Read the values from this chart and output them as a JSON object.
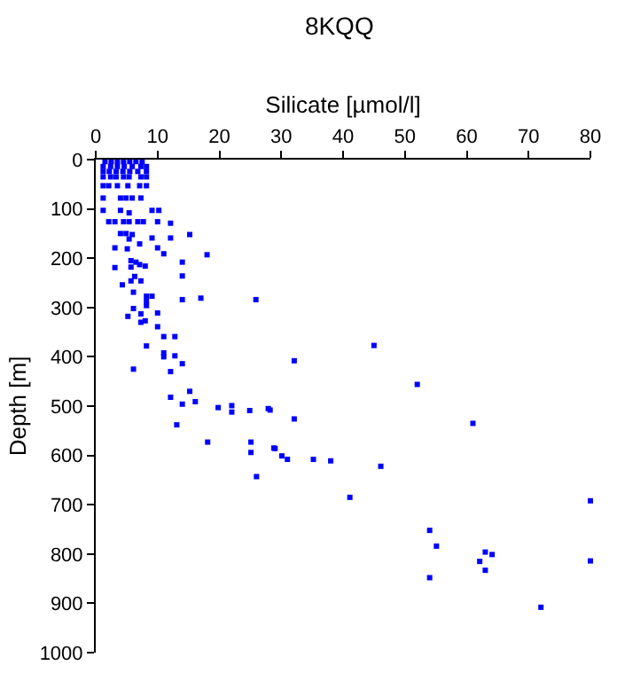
{
  "chart_data": {
    "type": "scatter",
    "title": "8KQQ",
    "xlabel": "Silicate [µmol/l]",
    "ylabel": "Depth [m]",
    "xlim": [
      0,
      80
    ],
    "xticks": [
      0,
      10,
      20,
      30,
      40,
      50,
      60,
      70,
      80
    ],
    "ylim": [
      1000,
      0
    ],
    "yticks": [
      0,
      100,
      200,
      300,
      400,
      500,
      600,
      700,
      800,
      900,
      1000
    ],
    "marker": "square",
    "series": [
      {
        "color": "#0000ff",
        "x": [
          1.5,
          2.5,
          3.5,
          4.5,
          5.5,
          6.5,
          7.5,
          1.2,
          2.4,
          3.5,
          4.6,
          5.9,
          7.3,
          8.2,
          1.2,
          2.2,
          3.3,
          4.4,
          5.5,
          6.8,
          8.2,
          1.2,
          2.4,
          3.3,
          4.5,
          5.4,
          7.3,
          8.2,
          1.2,
          2.1,
          3.5,
          5.2,
          7.1,
          8.2,
          1.2,
          4.0,
          4.9,
          5.9,
          7.3,
          1.2,
          4.0,
          5.4,
          9.1,
          10.2,
          2.1,
          3.1,
          4.5,
          5.4,
          6.8,
          7.7,
          10.0,
          12.1,
          4.0,
          4.9,
          5.9,
          15.2,
          5.4,
          9.1,
          12.1,
          3.1,
          5.1,
          7.1,
          10.0,
          11.0,
          18.0,
          5.7,
          6.5,
          7.1,
          14.0,
          3.1,
          5.7,
          8.0,
          6.3,
          14.0,
          4.3,
          5.7,
          7.3,
          6.1,
          8.2,
          9.1,
          14.0,
          17.0,
          25.9,
          8.2,
          8.2,
          6.1,
          7.3,
          10.0,
          5.2,
          7.3,
          8.0,
          10.0,
          11.0,
          12.8,
          8.2,
          11.0,
          11.0,
          12.8,
          14.0,
          6.1,
          12.1,
          15.2,
          12.1,
          14.0,
          16.1,
          19.8,
          22.0,
          22.0,
          24.9,
          27.9,
          13.1,
          18.1,
          25.1,
          25.1,
          28.8,
          26.0,
          45.0,
          32.1,
          52.0,
          28.2,
          32.1,
          61.0,
          29.0,
          30.1,
          31.0,
          35.2,
          38.0,
          46.1,
          41.1,
          54.0,
          55.1,
          63.0,
          64.1,
          62.1,
          63.0,
          54.0,
          72.0,
          80,
          80
        ],
        "values": [
          4,
          4,
          4,
          4,
          4,
          4,
          4,
          14,
          14,
          14,
          14,
          14,
          14,
          14,
          24,
          24,
          24,
          24,
          24,
          24,
          24,
          35,
          35,
          35,
          35,
          35,
          35,
          35,
          53,
          53,
          53,
          53,
          53,
          53,
          78,
          78,
          78,
          78,
          78,
          103,
          103,
          108,
          103,
          103,
          126,
          126,
          126,
          126,
          126,
          126,
          126,
          129,
          150,
          150,
          152,
          152,
          161,
          159,
          159,
          179,
          181,
          171,
          179,
          191,
          193,
          205,
          208,
          213,
          208,
          219,
          218,
          216,
          237,
          236,
          254,
          246,
          246,
          269,
          277,
          277,
          284,
          281,
          284,
          287,
          296,
          302,
          313,
          311,
          318,
          330,
          327,
          339,
          359,
          359,
          378,
          392,
          400,
          398,
          414,
          425,
          430,
          470,
          482,
          496,
          491,
          503,
          499,
          512,
          509,
          505,
          538,
          573,
          573,
          594,
          585,
          643,
          377,
          408,
          456,
          508,
          526,
          535,
          586,
          601,
          608,
          608,
          611,
          622,
          685,
          752,
          784,
          796,
          801,
          815,
          833,
          848,
          908,
          692,
          814
        ]
      }
    ]
  }
}
